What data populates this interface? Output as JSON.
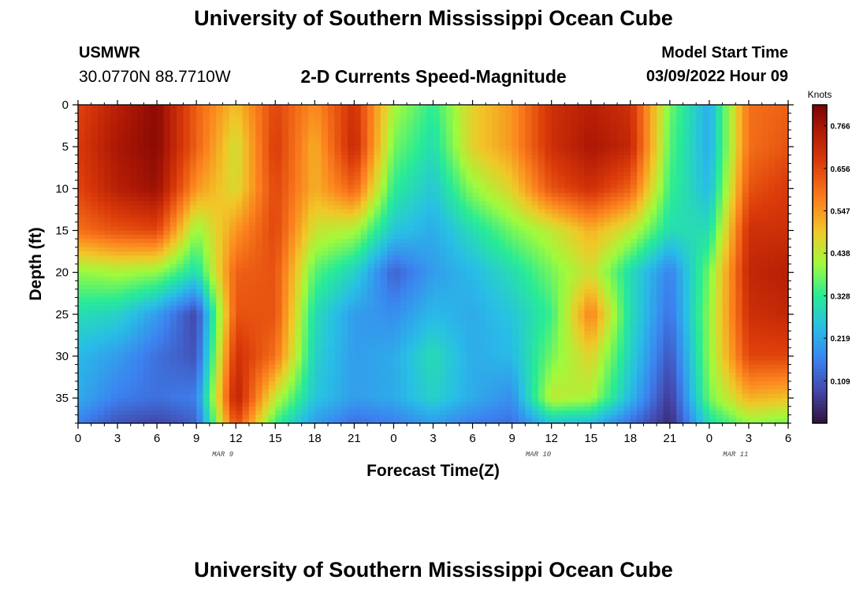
{
  "header": {
    "title": "University of Southern Mississippi Ocean Cube",
    "station": "USMWR",
    "coordinates": "30.0770N  88.7710W",
    "subtitle": "2-D Currents Speed-Magnitude",
    "model_start_label": "Model Start Time",
    "model_start_value": "03/09/2022 Hour 09"
  },
  "footer": {
    "title": "University of Southern Mississippi Ocean Cube"
  },
  "chart_data": {
    "type": "heatmap",
    "title": "2-D Currents Speed-Magnitude",
    "xlabel": "Forecast Time(Z)",
    "ylabel": "Depth (ft)",
    "x_tick_labels": [
      "0",
      "3",
      "6",
      "9",
      "12",
      "15",
      "18",
      "21",
      "0",
      "3",
      "6",
      "9",
      "12",
      "15",
      "18",
      "21",
      "0",
      "3",
      "6"
    ],
    "x_range": [
      0,
      54
    ],
    "date_labels": [
      {
        "text": "MAR 9",
        "at": 11
      },
      {
        "text": "MAR 10",
        "at": 35
      },
      {
        "text": "MAR 11",
        "at": 50
      }
    ],
    "y_ticks": [
      0,
      5,
      10,
      15,
      20,
      25,
      30,
      35
    ],
    "y_range": [
      0,
      38
    ],
    "y_inverted": true,
    "colorbar": {
      "label": "Knots",
      "ticks": [
        "0.766",
        "0.656",
        "0.547",
        "0.438",
        "0.328",
        "0.219",
        "0.109"
      ],
      "range": [
        0.0,
        0.82
      ]
    },
    "depths": [
      0,
      5,
      10,
      15,
      20,
      25,
      30,
      35,
      38
    ],
    "times": [
      0,
      3,
      6,
      9,
      12,
      15,
      18,
      21,
      24,
      27,
      30,
      33,
      36,
      39,
      42,
      45,
      48,
      51,
      54
    ],
    "values": [
      [
        0.66,
        0.74,
        0.8,
        0.62,
        0.5,
        0.66,
        0.56,
        0.7,
        0.42,
        0.33,
        0.48,
        0.55,
        0.7,
        0.74,
        0.7,
        0.38,
        0.22,
        0.6,
        0.62
      ],
      [
        0.68,
        0.76,
        0.8,
        0.62,
        0.45,
        0.68,
        0.52,
        0.72,
        0.38,
        0.3,
        0.48,
        0.55,
        0.7,
        0.76,
        0.72,
        0.36,
        0.22,
        0.6,
        0.64
      ],
      [
        0.66,
        0.74,
        0.78,
        0.55,
        0.46,
        0.66,
        0.52,
        0.62,
        0.33,
        0.26,
        0.4,
        0.48,
        0.64,
        0.7,
        0.62,
        0.34,
        0.24,
        0.64,
        0.68
      ],
      [
        0.6,
        0.64,
        0.66,
        0.4,
        0.55,
        0.66,
        0.45,
        0.42,
        0.26,
        0.22,
        0.3,
        0.38,
        0.44,
        0.52,
        0.44,
        0.3,
        0.3,
        0.7,
        0.7
      ],
      [
        0.4,
        0.42,
        0.4,
        0.3,
        0.62,
        0.64,
        0.36,
        0.28,
        0.12,
        0.2,
        0.24,
        0.3,
        0.38,
        0.46,
        0.3,
        0.16,
        0.38,
        0.72,
        0.74
      ],
      [
        0.3,
        0.28,
        0.2,
        0.08,
        0.64,
        0.64,
        0.3,
        0.2,
        0.18,
        0.24,
        0.22,
        0.26,
        0.34,
        0.58,
        0.3,
        0.14,
        0.4,
        0.7,
        0.72
      ],
      [
        0.24,
        0.2,
        0.14,
        0.1,
        0.7,
        0.6,
        0.28,
        0.2,
        0.22,
        0.3,
        0.22,
        0.24,
        0.38,
        0.48,
        0.28,
        0.1,
        0.4,
        0.66,
        0.66
      ],
      [
        0.22,
        0.16,
        0.14,
        0.16,
        0.74,
        0.44,
        0.26,
        0.2,
        0.22,
        0.28,
        0.22,
        0.18,
        0.44,
        0.42,
        0.24,
        0.06,
        0.38,
        0.52,
        0.5
      ],
      [
        0.16,
        0.1,
        0.08,
        0.12,
        0.66,
        0.34,
        0.2,
        0.14,
        0.16,
        0.2,
        0.16,
        0.14,
        0.26,
        0.24,
        0.14,
        0.04,
        0.3,
        0.4,
        0.38
      ]
    ]
  }
}
